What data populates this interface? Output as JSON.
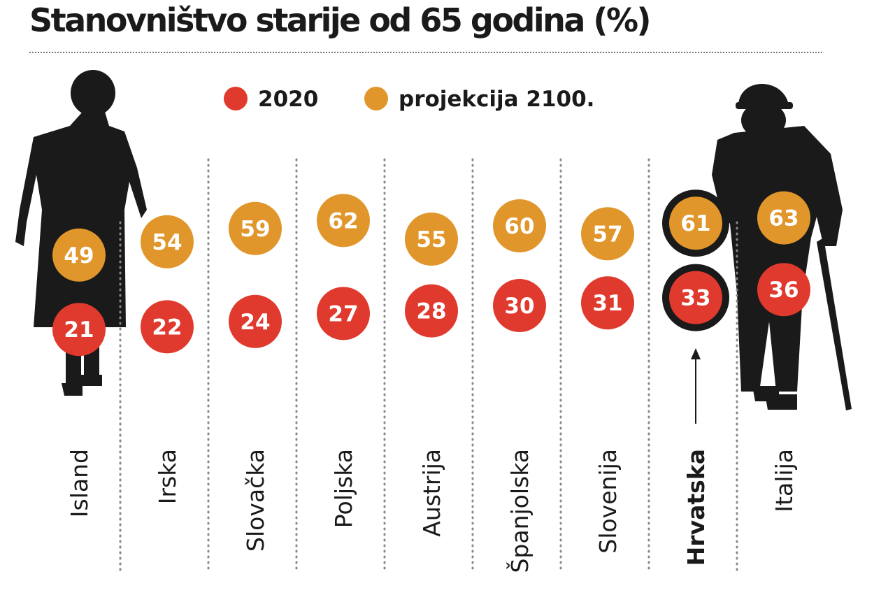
{
  "title": "Stanovništvo starije od 65 godina (%)",
  "colors": {
    "series_2020": "#e03a2e",
    "series_2100": "#e0962a",
    "silhouette": "#1a1a1a",
    "text": "#1a1a1a"
  },
  "chart_data": {
    "type": "scatter",
    "title": "Stanovništvo starije od 65 godina (%)",
    "xlabel": "",
    "ylabel": "%",
    "categories": [
      "Island",
      "Irska",
      "Slovačka",
      "Poljska",
      "Austrija",
      "Španjolska",
      "Slovenija",
      "Hrvatska",
      "Italija"
    ],
    "highlight": "Hrvatska",
    "legend_position": "top",
    "series": [
      {
        "name": "2020",
        "values": [
          21,
          22,
          24,
          27,
          28,
          30,
          31,
          33,
          36
        ]
      },
      {
        "name": "projekcija 2100.",
        "values": [
          49,
          54,
          59,
          62,
          55,
          60,
          57,
          61,
          63
        ]
      }
    ]
  }
}
